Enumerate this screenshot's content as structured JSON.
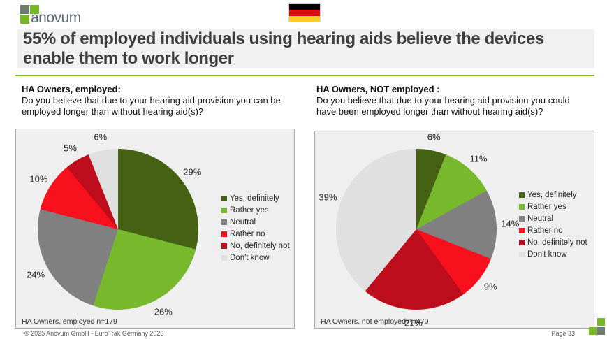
{
  "header": {
    "logo_text": "anovum"
  },
  "title": "55% of employed individuals using hearing aids believe the devices enable them to work longer",
  "sections": [
    {
      "heading": "HA Owners, employed:",
      "question": "Do you believe that due to your hearing aid provision you can be employed longer than without hearing aid(s)?"
    },
    {
      "heading": "HA Owners, NOT employed :",
      "question": "Do you believe that due to your hearing aid provision you could have been employed longer than without hearing aid(s)?"
    }
  ],
  "chart_data": [
    {
      "type": "pie",
      "title": "HA Owners, employed",
      "categories": [
        "Yes, definitely",
        "Rather yes",
        "Neutral",
        "Rather no",
        "No, definitely not",
        "Don't know"
      ],
      "values": [
        29,
        26,
        24,
        10,
        5,
        6
      ],
      "labels": [
        "29%",
        "26%",
        "24%",
        "10%",
        "5%",
        "6%"
      ],
      "colors": [
        "#446114",
        "#77B82C",
        "#808080",
        "#F8101C",
        "#BE0D1C",
        "#E0E0E0"
      ],
      "legend_position": "right",
      "start_angle": 0,
      "direction": "clockwise",
      "footnote": "HA Owners, employed n=179"
    },
    {
      "type": "pie",
      "title": "HA Owners, not employed",
      "categories": [
        "Yes, definitely",
        "Rather yes",
        "Neutral",
        "Rather no",
        "No, definitely not",
        "Don't know"
      ],
      "values": [
        6,
        11,
        14,
        9,
        21,
        39
      ],
      "labels": [
        "6%",
        "11%",
        "14%",
        "9%",
        "21%",
        "39%"
      ],
      "colors": [
        "#446114",
        "#77B82C",
        "#808080",
        "#F8101C",
        "#BE0D1C",
        "#E0E0E0"
      ],
      "legend_position": "right",
      "start_angle": 0,
      "direction": "clockwise",
      "footnote": "HA Owners, not employed n=470"
    }
  ],
  "footer": {
    "copyright": "© 2025 Anovum GmbH - EuroTrak Germany 2025",
    "page": "Page 33"
  }
}
